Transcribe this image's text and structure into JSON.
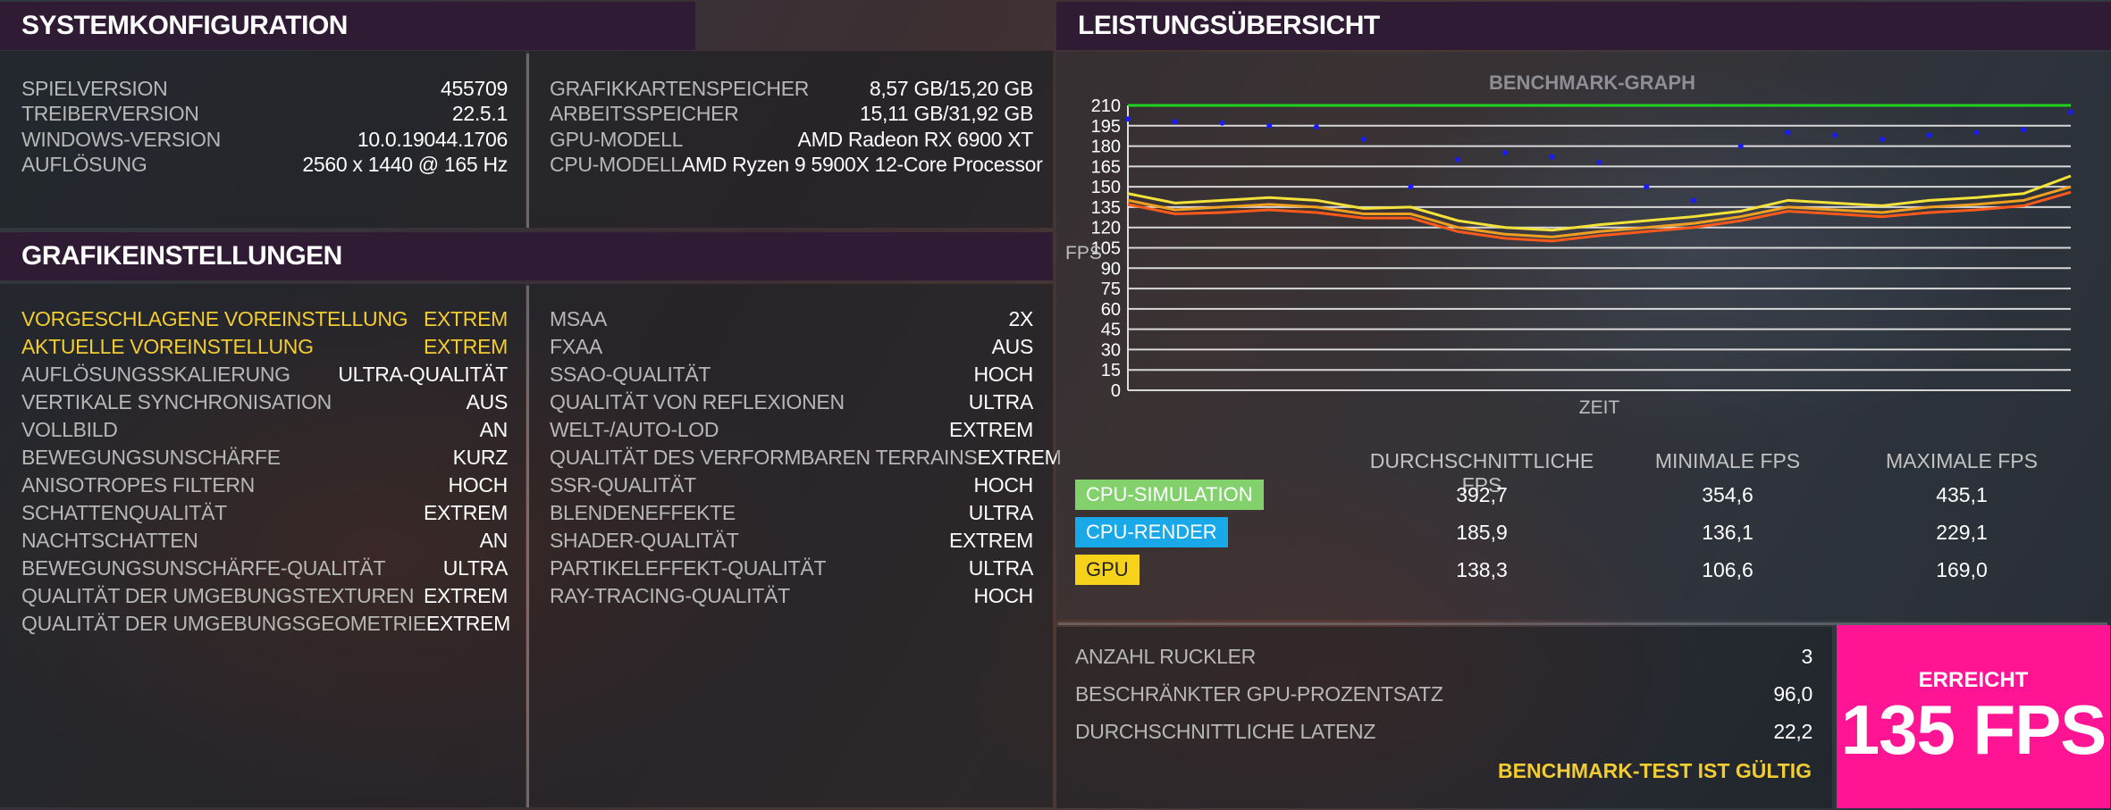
{
  "system": {
    "title": "SYSTEMKONFIGURATION",
    "left": [
      {
        "label": "SPIELVERSION",
        "value": "455709"
      },
      {
        "label": "TREIBERVERSION",
        "value": "22.5.1"
      },
      {
        "label": "WINDOWS-VERSION",
        "value": "10.0.19044.1706"
      },
      {
        "label": "AUFLÖSUNG",
        "value": "2560 x 1440 @ 165 Hz"
      }
    ],
    "right": [
      {
        "label": "GRAFIKKARTENSPEICHER",
        "value": "8,57 GB/15,20 GB"
      },
      {
        "label": "ARBEITSSPEICHER",
        "value": "15,11 GB/31,92 GB"
      },
      {
        "label": "GPU-MODELL",
        "value": "AMD Radeon RX 6900 XT"
      },
      {
        "label": "CPU-MODELL",
        "value": "AMD Ryzen 9 5900X 12-Core Processor"
      }
    ]
  },
  "graphics": {
    "title": "GRAFIKEINSTELLUNGEN",
    "left": [
      {
        "label": "VORGESCHLAGENE VOREINSTELLUNG",
        "value": "EXTREM",
        "highlight": true
      },
      {
        "label": "AKTUELLE VOREINSTELLUNG",
        "value": "EXTREM",
        "highlight": true
      },
      {
        "label": "AUFLÖSUNGSSKALIERUNG",
        "value": "ULTRA-QUALITÄT"
      },
      {
        "label": "VERTIKALE SYNCHRONISATION",
        "value": "AUS"
      },
      {
        "label": "VOLLBILD",
        "value": "AN"
      },
      {
        "label": "BEWEGUNGSUNSCHÄRFE",
        "value": "KURZ"
      },
      {
        "label": "ANISOTROPES FILTERN",
        "value": "HOCH"
      },
      {
        "label": "SCHATTENQUALITÄT",
        "value": "EXTREM"
      },
      {
        "label": "NACHTSCHATTEN",
        "value": "AN"
      },
      {
        "label": "BEWEGUNGSUNSCHÄRFE-QUALITÄT",
        "value": "ULTRA"
      },
      {
        "label": "QUALITÄT DER UMGEBUNGSTEXTUREN",
        "value": "EXTREM"
      },
      {
        "label": "QUALITÄT DER UMGEBUNGSGEOMETRIE",
        "value": "EXTREM"
      }
    ],
    "right": [
      {
        "label": "MSAA",
        "value": "2X"
      },
      {
        "label": "FXAA",
        "value": "AUS"
      },
      {
        "label": "SSAO-QUALITÄT",
        "value": "HOCH"
      },
      {
        "label": "QUALITÄT VON REFLEXIONEN",
        "value": "ULTRA"
      },
      {
        "label": "WELT-/AUTO-LOD",
        "value": "EXTREM"
      },
      {
        "label": "QUALITÄT DES VERFORMBAREN TERRAINS",
        "value": "EXTREM"
      },
      {
        "label": "SSR-QUALITÄT",
        "value": "HOCH"
      },
      {
        "label": "BLENDENEFFEKTE",
        "value": "ULTRA"
      },
      {
        "label": "SHADER-QUALITÄT",
        "value": "EXTREM"
      },
      {
        "label": "PARTIKELEFFEKT-QUALITÄT",
        "value": "ULTRA"
      },
      {
        "label": "RAY-TRACING-QUALITÄT",
        "value": "HOCH"
      }
    ]
  },
  "performance": {
    "title": "LEISTUNGSÜBERSICHT",
    "columns": [
      "DURCHSCHNITTLICHE FPS",
      "MINIMALE FPS",
      "MAXIMALE FPS"
    ],
    "rows": [
      {
        "tag": "CPU-SIMULATION",
        "color": "#82d16d",
        "text_color": "#ffffff",
        "values": [
          "392,7",
          "354,6",
          "435,1"
        ]
      },
      {
        "tag": "CPU-RENDER",
        "color": "#19a9e8",
        "text_color": "#ffffff",
        "values": [
          "185,9",
          "136,1",
          "229,1"
        ]
      },
      {
        "tag": "GPU",
        "color": "#f6d21a",
        "text_color": "#222222",
        "values": [
          "138,3",
          "106,6",
          "169,0"
        ]
      }
    ],
    "summary": [
      {
        "label": "ANZAHL RUCKLER",
        "value": "3"
      },
      {
        "label": "BESCHRÄNKTER GPU-PROZENTSATZ",
        "value": "96,0"
      },
      {
        "label": "DURCHSCHNITTLICHE LATENZ",
        "value": "22,2"
      }
    ],
    "valid_text": "BENCHMARK-TEST IST GÜLTIG",
    "result": {
      "caption": "ERREICHT",
      "value": "135 FPS",
      "color": "#ff1493"
    }
  },
  "chart_data": {
    "type": "line",
    "title": "BENCHMARK-GRAPH",
    "xlabel": "ZEIT",
    "ylabel": "FPS",
    "ylim": [
      0,
      210
    ],
    "yticks": [
      "0",
      "15",
      "30",
      "45",
      "60",
      "75",
      "90",
      "105",
      "120",
      "135",
      "150",
      "165",
      "180",
      "195",
      "210"
    ],
    "grid": true,
    "x": [
      0,
      5,
      10,
      15,
      20,
      25,
      30,
      35,
      40,
      45,
      50,
      55,
      60,
      65,
      70,
      75,
      80,
      85,
      90,
      95,
      100
    ],
    "series": [
      {
        "color": "#1a1aff",
        "style": "scatter",
        "values": [
          200,
          198,
          197,
          195,
          194,
          185,
          150,
          170,
          175,
          172,
          168,
          150,
          140,
          180,
          190,
          188,
          185,
          188,
          190,
          192,
          205
        ]
      },
      {
        "color": "#f2e23a",
        "style": "line",
        "values": [
          145,
          138,
          140,
          142,
          140,
          134,
          135,
          125,
          120,
          118,
          122,
          125,
          128,
          132,
          140,
          138,
          136,
          140,
          142,
          145,
          158
        ]
      },
      {
        "color": "#f0a020",
        "style": "line",
        "values": [
          140,
          133,
          135,
          137,
          135,
          130,
          130,
          120,
          115,
          113,
          117,
          120,
          123,
          128,
          135,
          133,
          131,
          135,
          137,
          140,
          150
        ]
      },
      {
        "color": "#ff5a1a",
        "style": "line",
        "values": [
          137,
          130,
          131,
          133,
          131,
          127,
          127,
          117,
          112,
          110,
          114,
          117,
          120,
          125,
          132,
          130,
          128,
          131,
          133,
          136,
          146
        ]
      },
      {
        "color": "#1fd31f",
        "style": "line",
        "values": [
          210,
          210,
          210,
          210,
          210,
          210,
          210,
          210,
          210,
          210,
          210,
          210,
          210,
          210,
          210,
          210,
          210,
          210,
          210,
          210,
          210
        ]
      }
    ]
  }
}
